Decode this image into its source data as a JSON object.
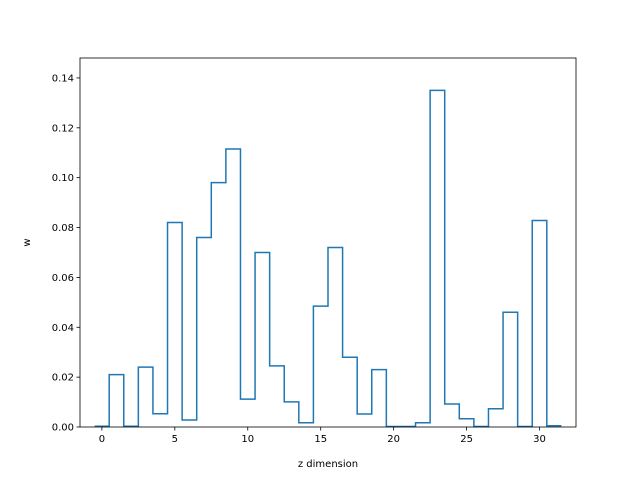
{
  "chart_data": {
    "type": "line",
    "style": "step",
    "title": "",
    "xlabel": "z dimension",
    "ylabel": "w",
    "xlim": [
      -1.5,
      32.5
    ],
    "ylim": [
      0,
      0.148
    ],
    "xticks": [
      0,
      5,
      10,
      15,
      20,
      25,
      30
    ],
    "xtick_labels": [
      "0",
      "5",
      "10",
      "15",
      "20",
      "25",
      "30"
    ],
    "yticks": [
      0.0,
      0.02,
      0.04,
      0.06,
      0.08,
      0.1,
      0.12,
      0.14
    ],
    "ytick_labels": [
      "0.00",
      "0.02",
      "0.04",
      "0.06",
      "0.08",
      "0.10",
      "0.12",
      "0.14"
    ],
    "grid": false,
    "legend": "none",
    "color": "#1f77b4",
    "series": [
      {
        "x": [
          0,
          1,
          2,
          3,
          4,
          5,
          6,
          7,
          8,
          9,
          10,
          11,
          12,
          13,
          14,
          15,
          16,
          17,
          18,
          19,
          20,
          21,
          22,
          23,
          24,
          25,
          26,
          27,
          28,
          29,
          30,
          31
        ],
        "values": [
          0.0003,
          0.021,
          0.0003,
          0.024,
          0.0053,
          0.082,
          0.0028,
          0.076,
          0.098,
          0.1115,
          0.0112,
          0.07,
          0.0245,
          0.0101,
          0.0017,
          0.0485,
          0.072,
          0.028,
          0.0052,
          0.023,
          0.0002,
          0.0002,
          0.0017,
          0.135,
          0.0092,
          0.0033,
          0.0002,
          0.0073,
          0.046,
          0.0002,
          0.0828,
          0.0005
        ]
      }
    ]
  }
}
